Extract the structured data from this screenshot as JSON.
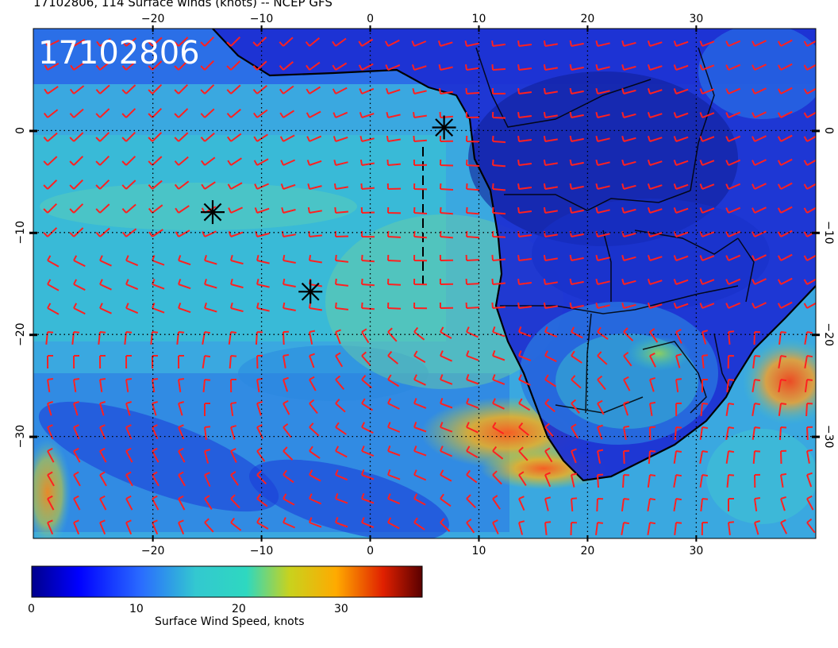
{
  "header": {
    "title": "17102806, 114 Surface winds (knots) -- NCEP GFS"
  },
  "map": {
    "stamp": "17102806",
    "lon_ticks": [
      "−20",
      "−10",
      "0",
      "10",
      "20",
      "30"
    ],
    "lon_values": [
      -20,
      -10,
      0,
      10,
      20,
      30
    ],
    "lat_ticks": [
      "0",
      "−10",
      "−20",
      "−30"
    ],
    "lat_values": [
      0,
      -10,
      -20,
      -30
    ],
    "extent": {
      "lon": [
        -31,
        41
      ],
      "lat": [
        -40,
        10
      ]
    },
    "markers": [
      {
        "lon": -14.5,
        "lat": -8.0
      },
      {
        "lon": -5.5,
        "lat": -15.8
      },
      {
        "lon": 6.8,
        "lat": 0.3
      }
    ]
  },
  "colorbar": {
    "label": "Surface Wind Speed, knots",
    "ticks": [
      "0",
      "10",
      "20",
      "30"
    ],
    "tick_values": [
      0,
      10,
      20,
      30
    ],
    "range": [
      0,
      38
    ],
    "colors": [
      "#00008c",
      "#0000ff",
      "#2a6cff",
      "#33c8d0",
      "#2ed8c0",
      "#c8d21e",
      "#ffaa00",
      "#e02000",
      "#5a0000"
    ]
  }
}
